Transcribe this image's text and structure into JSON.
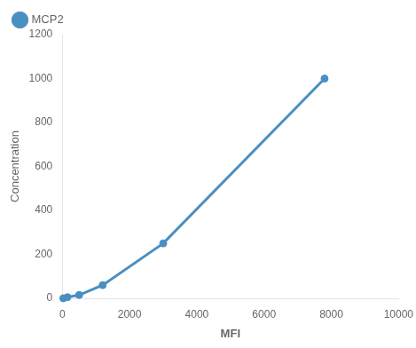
{
  "chart_data": {
    "type": "line",
    "x": [
      30,
      150,
      500,
      1200,
      3000,
      7800
    ],
    "series": [
      {
        "name": "MCP2",
        "color": "#4a8fc0",
        "marker": "circle",
        "values": [
          0,
          5,
          15,
          60,
          250,
          1000
        ]
      }
    ],
    "xlabel": "MFI",
    "ylabel": "Concentration",
    "xlim": [
      0,
      10000
    ],
    "ylim": [
      0,
      1200
    ],
    "xticks": [
      0,
      2000,
      4000,
      6000,
      8000,
      10000
    ],
    "yticks": [
      0,
      200,
      400,
      600,
      800,
      1000,
      1200
    ],
    "grid": false,
    "legend": "upper left"
  }
}
